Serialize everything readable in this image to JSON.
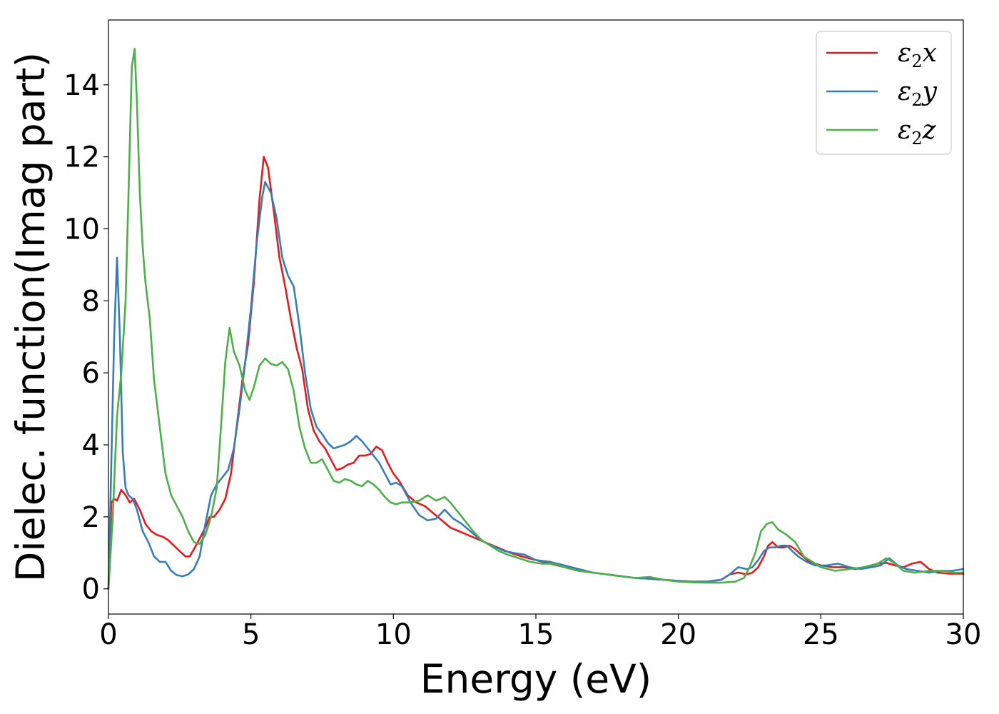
{
  "chart_data": {
    "type": "line",
    "xlabel": "Energy (eV)",
    "ylabel": "Dielec. function(Imag part)",
    "xlim": [
      0,
      30
    ],
    "ylim": [
      -0.7,
      15.8
    ],
    "xticks": [
      0,
      5,
      10,
      15,
      20,
      25,
      30
    ],
    "yticks": [
      0,
      2,
      4,
      6,
      8,
      10,
      12,
      14
    ],
    "grid": false,
    "legend_position": "top-right",
    "series": [
      {
        "name": "ε2x",
        "legend": {
          "symbol": "ε",
          "sub": "2",
          "axis": "x"
        },
        "color": "#e41a1c",
        "x": [
          0,
          0.1,
          0.2,
          0.3,
          0.45,
          0.6,
          0.75,
          0.9,
          1.1,
          1.3,
          1.5,
          1.7,
          1.9,
          2.1,
          2.3,
          2.5,
          2.7,
          2.85,
          3.0,
          3.2,
          3.4,
          3.55,
          3.7,
          3.9,
          4.1,
          4.3,
          4.5,
          4.7,
          4.9,
          5.1,
          5.3,
          5.45,
          5.6,
          5.8,
          6.0,
          6.2,
          6.4,
          6.6,
          6.8,
          7.0,
          7.2,
          7.4,
          7.6,
          7.8,
          8.0,
          8.2,
          8.4,
          8.6,
          8.8,
          9.0,
          9.2,
          9.4,
          9.6,
          9.8,
          10.0,
          10.2,
          10.5,
          10.8,
          11.1,
          11.4,
          11.7,
          12.0,
          12.3,
          12.6,
          12.9,
          13.2,
          13.5,
          13.8,
          14.1,
          14.5,
          15.0,
          15.5,
          16.0,
          16.5,
          17.0,
          17.5,
          18.0,
          18.5,
          19.0,
          19.5,
          20.0,
          20.5,
          21.0,
          21.5,
          21.8,
          22.1,
          22.4,
          22.6,
          22.8,
          23.0,
          23.15,
          23.3,
          23.5,
          23.7,
          23.9,
          24.1,
          24.3,
          24.6,
          25.0,
          25.4,
          25.8,
          26.2,
          26.6,
          27.0,
          27.3,
          27.6,
          27.9,
          28.2,
          28.5,
          28.8,
          29.1,
          29.5,
          30.0
        ],
        "y": [
          0,
          2.4,
          2.5,
          2.45,
          2.75,
          2.6,
          2.4,
          2.5,
          2.2,
          1.8,
          1.6,
          1.5,
          1.45,
          1.35,
          1.2,
          1.05,
          0.9,
          0.9,
          1.1,
          1.4,
          1.7,
          2.0,
          2.0,
          2.2,
          2.5,
          3.2,
          4.5,
          5.8,
          6.8,
          8.5,
          10.8,
          12.0,
          11.7,
          10.5,
          9.2,
          8.4,
          7.5,
          6.7,
          6.1,
          5.0,
          4.4,
          4.1,
          3.9,
          3.6,
          3.3,
          3.35,
          3.45,
          3.5,
          3.7,
          3.7,
          3.75,
          3.95,
          3.85,
          3.5,
          3.2,
          3.0,
          2.6,
          2.4,
          2.3,
          2.1,
          1.9,
          1.7,
          1.6,
          1.5,
          1.4,
          1.3,
          1.2,
          1.1,
          1.0,
          0.9,
          0.8,
          0.7,
          0.6,
          0.5,
          0.45,
          0.4,
          0.35,
          0.3,
          0.28,
          0.25,
          0.22,
          0.2,
          0.2,
          0.25,
          0.4,
          0.45,
          0.4,
          0.45,
          0.6,
          0.9,
          1.2,
          1.3,
          1.15,
          1.15,
          1.2,
          1.1,
          0.95,
          0.75,
          0.65,
          0.6,
          0.6,
          0.55,
          0.6,
          0.7,
          0.72,
          0.65,
          0.6,
          0.7,
          0.75,
          0.55,
          0.45,
          0.42,
          0.42
        ]
      },
      {
        "name": "ε2y",
        "legend": {
          "symbol": "ε",
          "sub": "2",
          "axis": "y"
        },
        "color": "#377eb8",
        "x": [
          0,
          0.1,
          0.2,
          0.3,
          0.4,
          0.5,
          0.6,
          0.7,
          0.85,
          1.0,
          1.2,
          1.4,
          1.6,
          1.8,
          2.0,
          2.2,
          2.4,
          2.6,
          2.8,
          3.0,
          3.2,
          3.4,
          3.6,
          3.8,
          4.0,
          4.2,
          4.4,
          4.6,
          4.8,
          5.0,
          5.2,
          5.4,
          5.5,
          5.7,
          5.9,
          6.1,
          6.3,
          6.5,
          6.7,
          6.9,
          7.1,
          7.3,
          7.5,
          7.7,
          7.9,
          8.1,
          8.3,
          8.5,
          8.7,
          8.9,
          9.1,
          9.3,
          9.5,
          9.7,
          9.9,
          10.1,
          10.3,
          10.6,
          10.9,
          11.2,
          11.5,
          11.8,
          12.1,
          12.4,
          12.7,
          13.0,
          13.3,
          13.6,
          13.9,
          14.2,
          14.6,
          15.0,
          15.5,
          16.0,
          16.5,
          17.0,
          17.5,
          18.0,
          18.5,
          19.0,
          19.5,
          20.0,
          20.5,
          21.0,
          21.5,
          21.8,
          22.1,
          22.4,
          22.6,
          22.8,
          23.0,
          23.2,
          23.4,
          23.6,
          23.8,
          24.0,
          24.2,
          24.5,
          24.8,
          25.2,
          25.6,
          26.0,
          26.4,
          26.8,
          27.1,
          27.4,
          27.7,
          28.0,
          28.4,
          28.8,
          29.2,
          29.6,
          30.0
        ],
        "y": [
          0,
          3.5,
          7.0,
          9.2,
          7.0,
          3.8,
          2.8,
          2.6,
          2.5,
          2.2,
          1.6,
          1.3,
          0.9,
          0.75,
          0.75,
          0.5,
          0.38,
          0.35,
          0.4,
          0.55,
          0.9,
          1.8,
          2.6,
          2.9,
          3.1,
          3.3,
          3.9,
          5.0,
          6.3,
          7.8,
          9.6,
          10.9,
          11.3,
          11.0,
          10.3,
          9.2,
          8.7,
          8.4,
          7.3,
          6.0,
          5.0,
          4.5,
          4.3,
          4.05,
          3.9,
          3.95,
          4.0,
          4.1,
          4.25,
          4.1,
          3.9,
          3.7,
          3.5,
          3.2,
          2.9,
          2.95,
          2.85,
          2.4,
          2.05,
          1.9,
          1.95,
          2.2,
          1.95,
          1.8,
          1.6,
          1.4,
          1.25,
          1.15,
          1.05,
          1.0,
          0.95,
          0.8,
          0.75,
          0.65,
          0.55,
          0.45,
          0.4,
          0.35,
          0.3,
          0.28,
          0.25,
          0.22,
          0.2,
          0.2,
          0.25,
          0.4,
          0.6,
          0.55,
          0.6,
          0.8,
          1.05,
          1.15,
          1.15,
          1.2,
          1.2,
          1.05,
          0.9,
          0.75,
          0.65,
          0.65,
          0.7,
          0.6,
          0.55,
          0.6,
          0.65,
          0.85,
          0.65,
          0.55,
          0.5,
          0.45,
          0.5,
          0.5,
          0.55
        ]
      },
      {
        "name": "ε2z",
        "legend": {
          "symbol": "ε",
          "sub": "2",
          "axis": "z"
        },
        "color": "#4daf4a",
        "x": [
          0,
          0.15,
          0.3,
          0.45,
          0.6,
          0.72,
          0.82,
          0.92,
          1.0,
          1.1,
          1.2,
          1.3,
          1.45,
          1.6,
          1.8,
          2.0,
          2.2,
          2.4,
          2.6,
          2.8,
          3.0,
          3.2,
          3.4,
          3.6,
          3.8,
          3.95,
          4.1,
          4.25,
          4.4,
          4.6,
          4.8,
          4.95,
          5.1,
          5.3,
          5.5,
          5.7,
          5.9,
          6.1,
          6.3,
          6.5,
          6.7,
          6.9,
          7.1,
          7.3,
          7.5,
          7.7,
          7.9,
          8.1,
          8.3,
          8.5,
          8.7,
          8.9,
          9.1,
          9.3,
          9.5,
          9.7,
          9.9,
          10.1,
          10.3,
          10.6,
          10.9,
          11.2,
          11.5,
          11.8,
          12.0,
          12.2,
          12.5,
          12.8,
          13.1,
          13.4,
          13.7,
          14.0,
          14.4,
          14.8,
          15.2,
          15.6,
          16.0,
          16.5,
          17.0,
          17.5,
          18.0,
          18.5,
          19.0,
          19.5,
          20.0,
          20.5,
          21.0,
          21.5,
          22.0,
          22.3,
          22.5,
          22.7,
          22.9,
          23.1,
          23.3,
          23.5,
          23.8,
          24.1,
          24.4,
          24.7,
          25.0,
          25.5,
          26.0,
          26.5,
          27.0,
          27.3,
          27.6,
          27.9,
          28.3,
          28.8,
          29.3,
          29.7,
          30.0
        ],
        "y": [
          0,
          2.0,
          4.8,
          6.0,
          8.0,
          11.5,
          14.5,
          15.0,
          13.5,
          11.0,
          9.5,
          8.5,
          7.5,
          5.8,
          4.5,
          3.2,
          2.6,
          2.3,
          2.0,
          1.6,
          1.3,
          1.25,
          1.5,
          2.0,
          2.8,
          4.5,
          6.3,
          7.25,
          6.6,
          6.2,
          5.5,
          5.25,
          5.6,
          6.2,
          6.4,
          6.25,
          6.2,
          6.3,
          6.1,
          5.5,
          4.5,
          3.9,
          3.5,
          3.5,
          3.6,
          3.3,
          3.0,
          2.95,
          3.05,
          3.0,
          2.9,
          2.85,
          3.0,
          2.9,
          2.75,
          2.55,
          2.4,
          2.35,
          2.4,
          2.4,
          2.45,
          2.6,
          2.45,
          2.55,
          2.4,
          2.2,
          1.9,
          1.6,
          1.35,
          1.2,
          1.05,
          0.95,
          0.85,
          0.75,
          0.7,
          0.7,
          0.6,
          0.5,
          0.45,
          0.4,
          0.35,
          0.3,
          0.33,
          0.25,
          0.2,
          0.18,
          0.17,
          0.17,
          0.2,
          0.3,
          0.6,
          1.0,
          1.6,
          1.8,
          1.85,
          1.65,
          1.5,
          1.3,
          0.9,
          0.75,
          0.6,
          0.5,
          0.55,
          0.6,
          0.7,
          0.85,
          0.7,
          0.5,
          0.45,
          0.5,
          0.5,
          0.45,
          0.45
        ]
      }
    ]
  }
}
